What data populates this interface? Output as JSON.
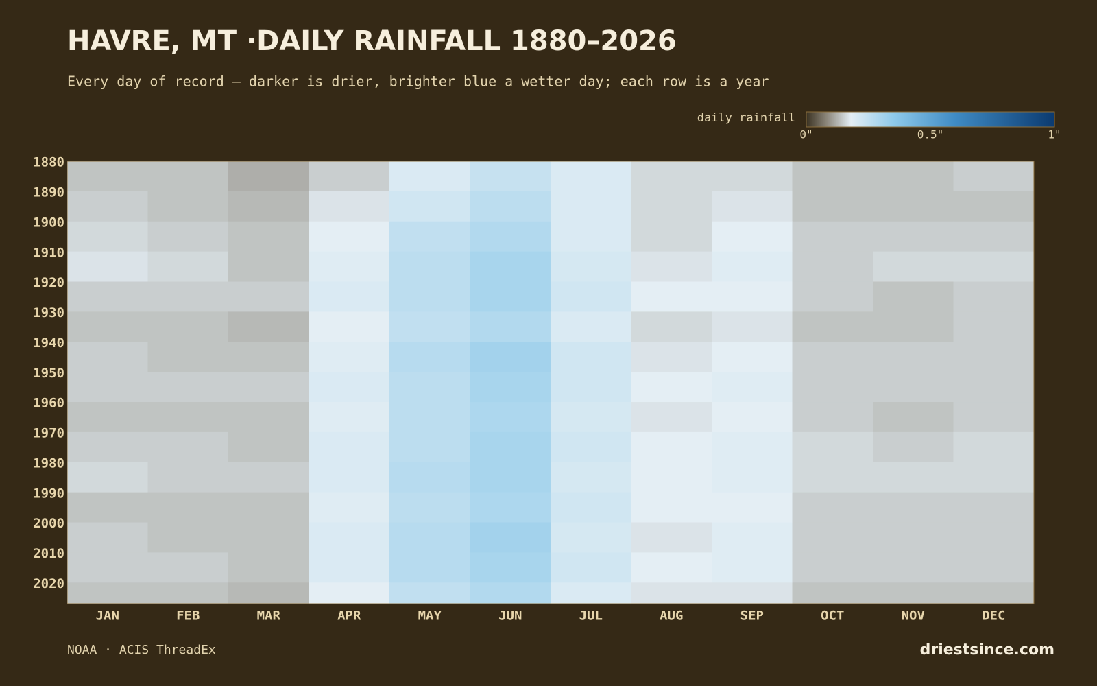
{
  "chart_data": {
    "type": "heatmap",
    "title": "HAVRE, MT ·DAILY RAINFALL 1880–2026",
    "subtitle": "Every day of record — darker is drier, brighter blue a wetter day; each row is a year",
    "colorbar_label": "daily rainfall",
    "source": "NOAA · ACIS ThreadEx",
    "brand": "driestsince.com",
    "categories": [
      "JAN",
      "FEB",
      "MAR",
      "APR",
      "MAY",
      "JUN",
      "JUL",
      "AUG",
      "SEP",
      "OCT",
      "NOV",
      "DEC"
    ],
    "y": [
      1880,
      1890,
      1900,
      1910,
      1920,
      1930,
      1940,
      1950,
      1960,
      1970,
      1980,
      1990,
      2000,
      2010,
      2020
    ],
    "ylim": [
      1880,
      2027
    ],
    "yticks": [
      1880,
      1890,
      1900,
      1910,
      1920,
      1930,
      1940,
      1950,
      1960,
      1970,
      1980,
      1990,
      2000,
      2010,
      2020
    ],
    "values": [
      [
        0.14,
        0.14,
        0.12,
        0.15,
        0.2,
        0.24,
        0.2,
        0.16,
        0.16,
        0.14,
        0.14,
        0.15
      ],
      [
        0.15,
        0.14,
        0.13,
        0.17,
        0.22,
        0.26,
        0.2,
        0.16,
        0.17,
        0.14,
        0.14,
        0.14
      ],
      [
        0.16,
        0.15,
        0.14,
        0.18,
        0.25,
        0.28,
        0.2,
        0.16,
        0.18,
        0.15,
        0.15,
        0.15
      ],
      [
        0.17,
        0.16,
        0.14,
        0.19,
        0.26,
        0.3,
        0.21,
        0.17,
        0.19,
        0.15,
        0.16,
        0.16
      ],
      [
        0.15,
        0.15,
        0.15,
        0.2,
        0.26,
        0.3,
        0.22,
        0.18,
        0.18,
        0.15,
        0.14,
        0.15
      ],
      [
        0.14,
        0.14,
        0.13,
        0.18,
        0.25,
        0.28,
        0.2,
        0.16,
        0.17,
        0.14,
        0.14,
        0.15
      ],
      [
        0.15,
        0.14,
        0.14,
        0.19,
        0.27,
        0.31,
        0.22,
        0.17,
        0.18,
        0.15,
        0.15,
        0.15
      ],
      [
        0.15,
        0.15,
        0.15,
        0.2,
        0.26,
        0.3,
        0.22,
        0.18,
        0.19,
        0.15,
        0.15,
        0.15
      ],
      [
        0.14,
        0.14,
        0.14,
        0.19,
        0.26,
        0.29,
        0.21,
        0.17,
        0.18,
        0.15,
        0.14,
        0.15
      ],
      [
        0.15,
        0.15,
        0.14,
        0.2,
        0.26,
        0.3,
        0.22,
        0.18,
        0.19,
        0.16,
        0.15,
        0.16
      ],
      [
        0.16,
        0.15,
        0.15,
        0.2,
        0.27,
        0.3,
        0.21,
        0.18,
        0.19,
        0.16,
        0.16,
        0.16
      ],
      [
        0.14,
        0.14,
        0.14,
        0.19,
        0.26,
        0.29,
        0.22,
        0.18,
        0.18,
        0.15,
        0.15,
        0.15
      ],
      [
        0.15,
        0.14,
        0.14,
        0.2,
        0.27,
        0.31,
        0.21,
        0.17,
        0.19,
        0.15,
        0.15,
        0.15
      ],
      [
        0.15,
        0.15,
        0.14,
        0.2,
        0.27,
        0.3,
        0.22,
        0.18,
        0.19,
        0.15,
        0.15,
        0.15
      ],
      [
        0.14,
        0.14,
        0.13,
        0.18,
        0.25,
        0.28,
        0.2,
        0.17,
        0.17,
        0.14,
        0.14,
        0.14
      ]
    ],
    "zlim": [
      0,
      1
    ],
    "colorscale": [
      [
        0,
        "#3a3222"
      ],
      [
        0.08,
        "#8a8478"
      ],
      [
        0.18,
        "#e4eef4"
      ],
      [
        0.35,
        "#8fcaea"
      ],
      [
        0.6,
        "#3f8bc4"
      ],
      [
        1,
        "#0b3a70"
      ]
    ],
    "colorbar_ticks": [
      {
        "value": 0,
        "label": "0\""
      },
      {
        "value": 0.5,
        "label": "0.5\""
      },
      {
        "value": 1,
        "label": "1\""
      }
    ]
  }
}
